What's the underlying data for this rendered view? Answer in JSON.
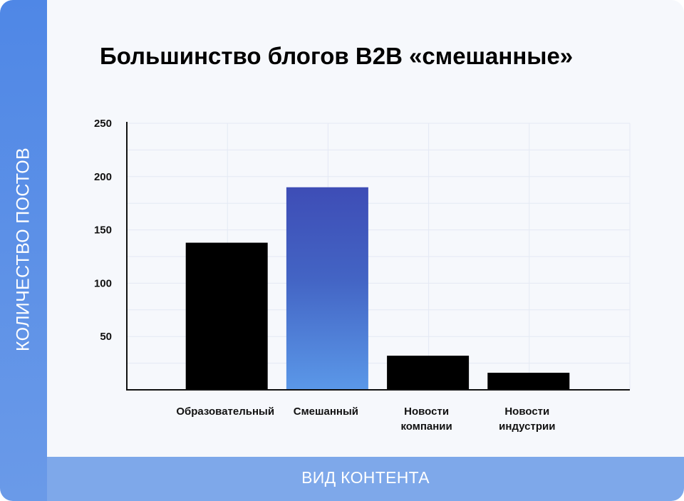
{
  "chart_data": {
    "type": "bar",
    "title": "Большинство блогов B2B «смешанные»",
    "xlabel": "ВИД КОНТЕНТА",
    "ylabel": "КОЛИЧЕСТВО ПОСТОВ",
    "ylim": [
      0,
      250
    ],
    "yticks": [
      "250",
      "200",
      "150",
      "100",
      "50"
    ],
    "ytick_values": [
      250,
      200,
      150,
      100,
      50
    ],
    "grid": true,
    "categories": [
      [
        "Образовательный"
      ],
      [
        "Смешанный"
      ],
      [
        "Новости",
        "компании"
      ],
      [
        "Новости",
        "индустрии"
      ]
    ],
    "values": [
      138,
      190,
      32,
      16
    ],
    "colors": [
      "#000000",
      "gradient:#3f4fb8-#5b96e8",
      "#000000",
      "#000000"
    ]
  }
}
